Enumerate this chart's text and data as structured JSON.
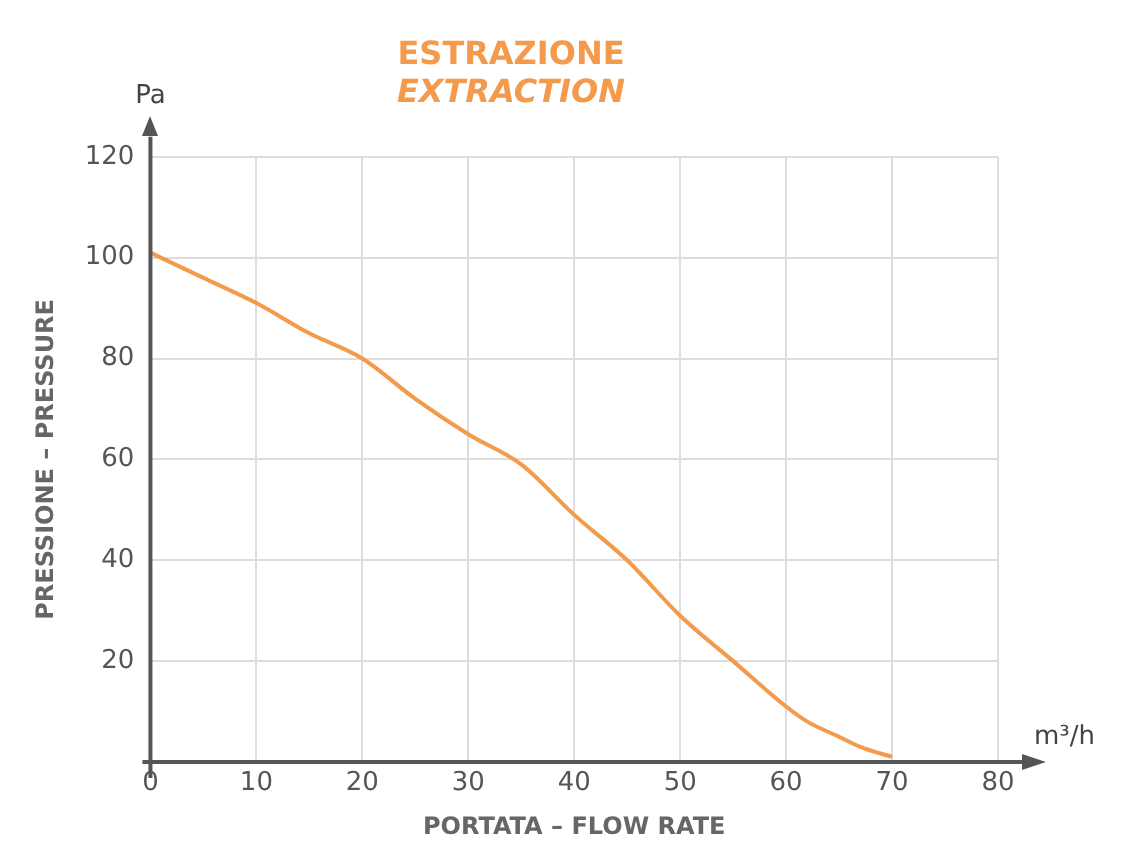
{
  "chart_data": {
    "type": "line",
    "title": "ESTRAZIONE",
    "subtitle": "EXTRACTION",
    "xlabel": "PORTATA – FLOW RATE",
    "ylabel": "PRESSIONE – PRESSURE",
    "annotations": [
      "Pa",
      "m³/h"
    ],
    "x": [
      0,
      5,
      10,
      15,
      20,
      25,
      30,
      35,
      40,
      45,
      50,
      55,
      60,
      62,
      65,
      67,
      70
    ],
    "series": [
      {
        "color": "#f39a4c",
        "values": [
          101,
          96,
          91,
          85,
          80,
          72,
          65,
          59,
          49,
          40,
          29,
          20,
          11,
          8,
          5,
          3,
          1
        ]
      }
    ],
    "xlim": [
      0,
      80
    ],
    "xticks": [
      0,
      10,
      20,
      30,
      40,
      50,
      60,
      70,
      80
    ],
    "ylim": [
      0,
      120
    ],
    "yticks": [
      {
        "value": 0,
        "label": null
      },
      20,
      40,
      60,
      80,
      100,
      120
    ],
    "grid": true,
    "legend": false,
    "marker": "none",
    "line_style": "solid"
  }
}
